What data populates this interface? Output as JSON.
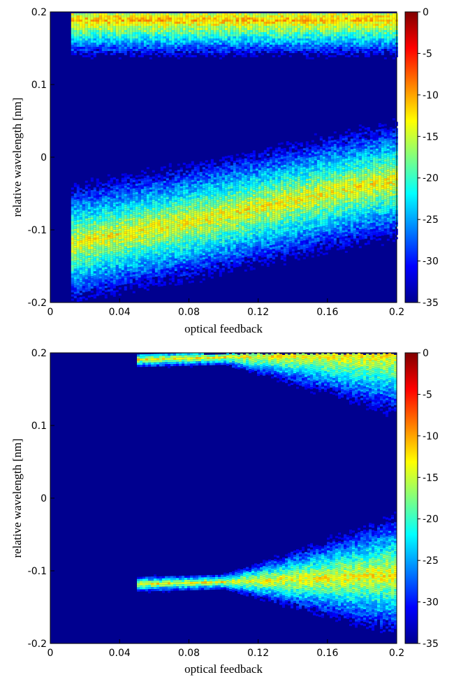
{
  "colors": {
    "background": "#00008f",
    "colormap": [
      "#00008f",
      "#0000ff",
      "#0080ff",
      "#00ffff",
      "#80ff80",
      "#ffff00",
      "#ff8000",
      "#ff0000",
      "#800000"
    ]
  },
  "chart_data": [
    {
      "type": "heatmap",
      "xlabel": "optical   feedback",
      "ylabel": "relative wavelength [nm]",
      "xlim": [
        0,
        0.2
      ],
      "ylim": [
        -0.2,
        0.2
      ],
      "x_ticks": [
        "0",
        "0.04",
        "0.08",
        "0.12",
        "0.16",
        "0.2"
      ],
      "y_ticks": [
        "-0.2",
        "-0.1",
        "0",
        "0.1",
        "0.2"
      ],
      "colorbar": {
        "min": -35,
        "max": 0,
        "ticks": [
          "0",
          "-5",
          "-10",
          "-15",
          "-20",
          "-25",
          "-30",
          "-35"
        ]
      },
      "background_value": -35,
      "bands": [
        {
          "name": "upper mode",
          "x_start": 0.012,
          "x_end": 0.2,
          "path": [
            [
              0.012,
              0.19
            ],
            [
              0.05,
              0.19
            ],
            [
              0.1,
              0.19
            ],
            [
              0.15,
              0.19
            ],
            [
              0.2,
              0.19
            ]
          ],
          "peak_level": -8,
          "width_nm": 0.02
        },
        {
          "name": "lower mode",
          "x_start": 0.012,
          "x_end": 0.2,
          "path": [
            [
              0.012,
              -0.118
            ],
            [
              0.04,
              -0.105
            ],
            [
              0.08,
              -0.088
            ],
            [
              0.12,
              -0.068
            ],
            [
              0.16,
              -0.048
            ],
            [
              0.2,
              -0.03
            ]
          ],
          "peak_level": -10,
          "width_nm": 0.035
        }
      ]
    },
    {
      "type": "heatmap",
      "xlabel": "optical   feedback",
      "ylabel": "relative   wavelength   [nm]",
      "xlim": [
        0,
        0.2
      ],
      "ylim": [
        -0.2,
        0.2
      ],
      "x_ticks": [
        "0",
        "0.04",
        "0.08",
        "0.12",
        "0.16",
        "0.2"
      ],
      "y_ticks": [
        "-0.2",
        "-0.1",
        "0",
        "0.1",
        "0.2"
      ],
      "colorbar": {
        "min": -35,
        "max": 0,
        "ticks": [
          "0",
          "-5",
          "-10",
          "-15",
          "-20",
          "-25",
          "-30",
          "-35"
        ]
      },
      "background_value": -35,
      "bands": [
        {
          "name": "upper mode",
          "x_start": 0.05,
          "x_end": 0.2,
          "path": [
            [
              0.05,
              0.192
            ],
            [
              0.1,
              0.195
            ],
            [
              0.15,
              0.197
            ],
            [
              0.2,
              0.198
            ]
          ],
          "peak_level": -10,
          "width_nm": 0.008
        },
        {
          "name": "lower mode",
          "x_start": 0.05,
          "x_end": 0.2,
          "path": [
            [
              0.05,
              -0.117
            ],
            [
              0.1,
              -0.114
            ],
            [
              0.15,
              -0.11
            ],
            [
              0.2,
              -0.104
            ]
          ],
          "peak_level": -10,
          "width_nm": 0.008
        }
      ]
    }
  ]
}
